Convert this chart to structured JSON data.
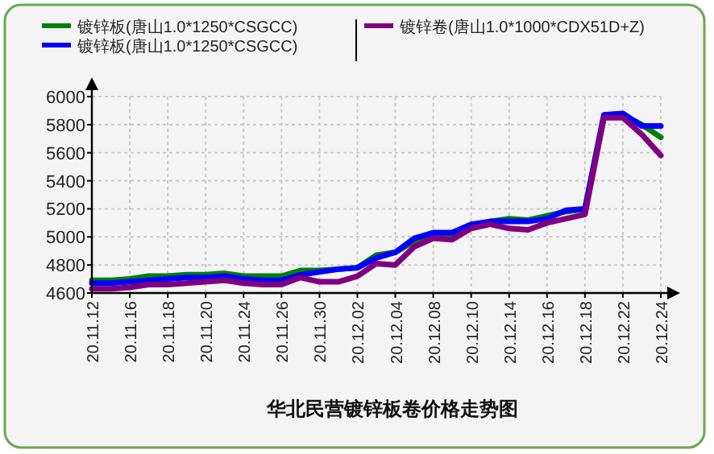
{
  "chart_data": {
    "type": "line",
    "title": "华北民营镀锌板卷价格走势图",
    "categories": [
      "20.11.12",
      null,
      "20.11.16",
      null,
      "20.11.18",
      null,
      "20.11.20",
      null,
      "20.11.24",
      null,
      "20.11.26",
      null,
      "20.11.30",
      null,
      "20.12.02",
      null,
      "20.12.04",
      null,
      "20.12.08",
      null,
      "20.12.10",
      null,
      "20.12.14",
      null,
      "20.12.16",
      null,
      "20.12.18",
      null,
      "20.12.22",
      null,
      "20.12.24"
    ],
    "series": [
      {
        "name": "镀锌板(唐山1.0*1250*CSGCC)",
        "color": "#008000",
        "values": [
          4690,
          4690,
          4700,
          4720,
          4720,
          4730,
          4730,
          4740,
          4720,
          4720,
          4720,
          4760,
          4760,
          4770,
          4780,
          4870,
          4890,
          4970,
          5010,
          5010,
          5070,
          5110,
          5130,
          5120,
          5150,
          5180,
          5200,
          5850,
          5870,
          5800,
          5710
        ]
      },
      {
        "name": "镀锌板(唐山1.0*1250*CSGCC)",
        "color": "#0000ff",
        "values": [
          4670,
          4670,
          4680,
          4690,
          4700,
          4710,
          4710,
          4720,
          4700,
          4690,
          4690,
          4730,
          4750,
          4770,
          4780,
          4850,
          4890,
          4990,
          5030,
          5030,
          5090,
          5110,
          5110,
          5110,
          5130,
          5190,
          5200,
          5870,
          5880,
          5790,
          5790
        ]
      },
      {
        "name": "镀锌卷(唐山1.0*1000*CDX51D+Z)",
        "color": "#800080",
        "values": [
          4630,
          4630,
          4640,
          4660,
          4660,
          4670,
          4680,
          4690,
          4670,
          4660,
          4660,
          4710,
          4680,
          4680,
          4720,
          4810,
          4800,
          4930,
          4990,
          4980,
          5060,
          5090,
          5060,
          5050,
          5100,
          5130,
          5160,
          5850,
          5850,
          5730,
          5580
        ]
      }
    ],
    "ylim": [
      4600,
      6000
    ],
    "yticks": [
      4600,
      4800,
      5000,
      5200,
      5400,
      5600,
      5800,
      6000
    ],
    "grid": true,
    "legend": "top left",
    "marker": "none",
    "line_style": "solid"
  }
}
